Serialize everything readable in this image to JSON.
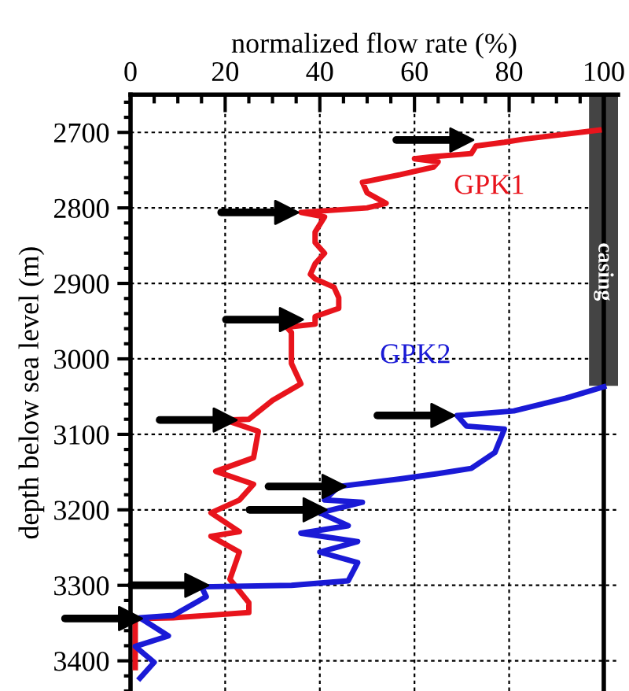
{
  "chart_data": {
    "type": "line",
    "orientation": "horizontal",
    "xlabel": "normalized flow rate (%)",
    "ylabel": "depth below sea level (m)",
    "xlim": [
      0,
      103
    ],
    "xticks": [
      0,
      20,
      40,
      60,
      80,
      100
    ],
    "ylim": [
      3440,
      2650
    ],
    "yticks": [
      2700,
      2800,
      2900,
      3000,
      3100,
      3200,
      3300,
      3400
    ],
    "grid": true,
    "tick_labels": "both",
    "line_style": "solid",
    "series": [
      {
        "name": "GPK1",
        "color": "#e8141c",
        "x": [
          2697,
          2709,
          2713,
          2718,
          2728,
          2732,
          2735,
          2739,
          2746,
          2756,
          2766,
          2780,
          2794,
          2800,
          2806,
          2812,
          2832,
          2846,
          2860,
          2874,
          2888,
          2894,
          2905,
          2919,
          2933,
          2944,
          2954,
          2958,
          2965,
          3006,
          3033,
          3055,
          3080,
          3081,
          3096,
          3131,
          3149,
          3166,
          3187,
          3204,
          3229,
          3235,
          3256,
          3292,
          3323,
          3336,
          3343,
          3344,
          3381,
          3409
        ],
        "values": [
          99,
          83,
          79,
          73,
          72,
          64,
          60,
          65,
          64,
          57,
          49,
          50,
          54,
          50,
          36,
          41,
          39,
          39,
          41,
          39,
          38,
          39,
          43,
          44,
          44,
          39,
          39,
          33,
          34,
          34,
          36,
          30,
          25,
          20,
          27,
          26,
          18,
          26,
          23,
          17,
          23,
          17,
          23,
          21,
          25,
          25,
          9,
          1,
          1,
          1
        ]
      },
      {
        "name": "GPK2",
        "color": "#1a1ad6",
        "x": [
          3037,
          3052,
          3069,
          3075,
          3089,
          3093,
          3124,
          3145,
          3152,
          3159,
          3169,
          3187,
          3190,
          3204,
          3221,
          3231,
          3242,
          3256,
          3270,
          3294,
          3300,
          3302,
          3315,
          3340,
          3343,
          3367,
          3381,
          3402,
          3423
        ],
        "values": [
          100,
          92,
          81,
          69,
          71,
          79,
          77,
          72,
          65,
          57,
          44,
          41,
          49,
          40,
          46,
          36,
          48,
          40,
          48,
          46,
          34,
          15,
          16,
          9,
          2,
          8,
          1,
          5,
          2
        ]
      },
      {
        "type": "scatter",
        "marker": "triangle",
        "color": "#000000",
        "x": [
          2710,
          2806,
          2948,
          3081,
          3075,
          3169,
          3200,
          3300,
          3344
        ],
        "values": [
          70,
          33,
          34,
          20,
          66,
          43,
          39,
          14,
          0
        ]
      }
    ],
    "ref_lines": [
      {
        "axis": "x",
        "value": 100,
        "color": "#000000",
        "line_style": "solid"
      }
    ],
    "bands": [
      {
        "axis": "y",
        "from": 2650,
        "to": 3035,
        "label": "casing",
        "color": "#444444"
      }
    ]
  }
}
